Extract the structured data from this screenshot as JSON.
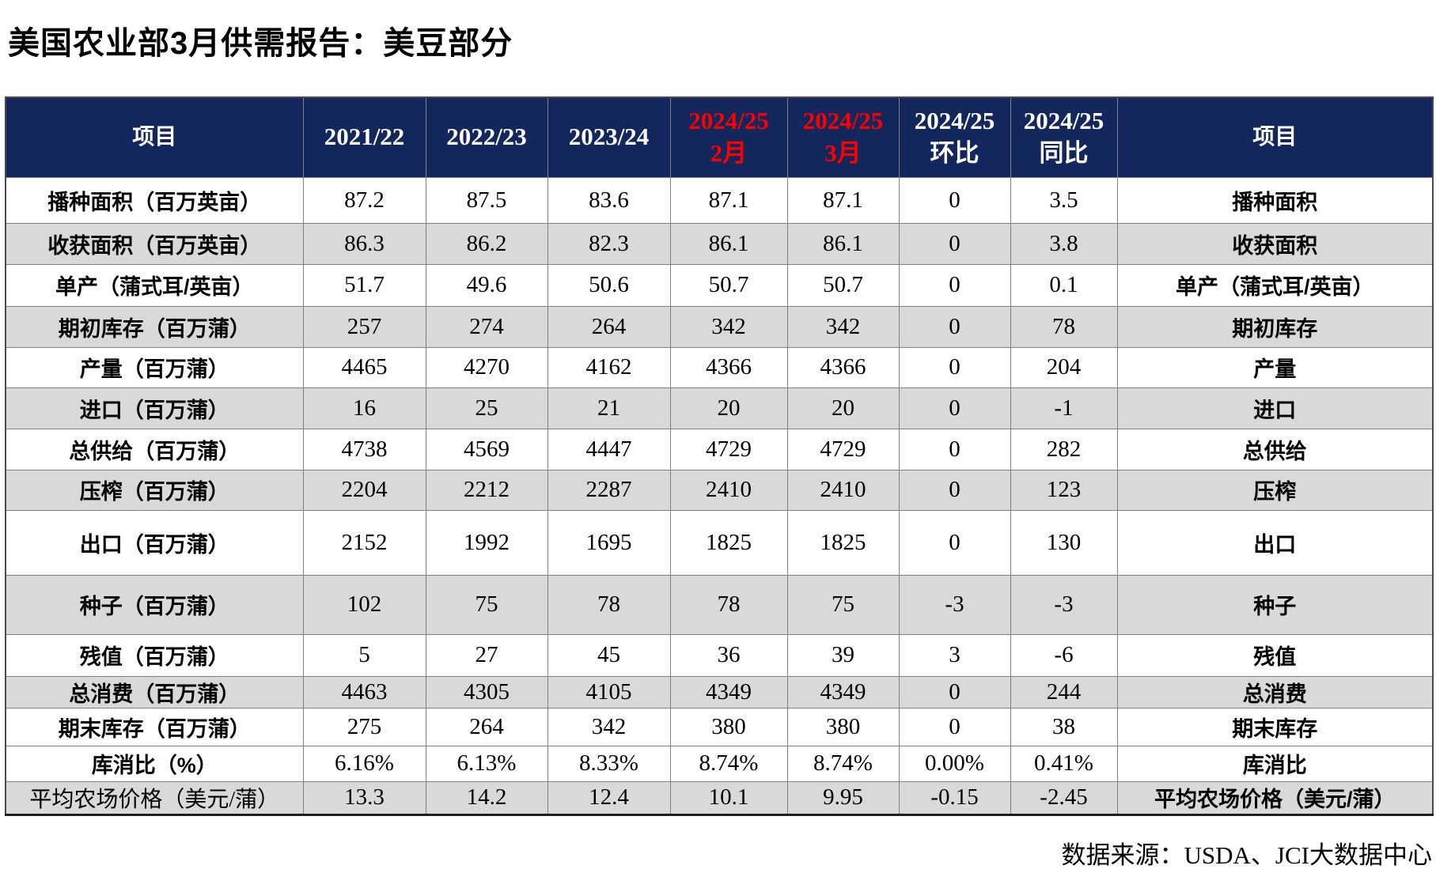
{
  "title": "美国农业部3月供需报告：美豆部分",
  "source": "数据来源：USDA、JCI大数据中心",
  "colors": {
    "header_bg": "#13275d",
    "shaded_row_bg": "#d9d9d9",
    "highlight_red": "#ff0000",
    "grid_line": "#808080"
  },
  "table": {
    "header": [
      {
        "line1": "项目",
        "line2": "",
        "red": false
      },
      {
        "line1": "2021/22",
        "line2": "",
        "red": false
      },
      {
        "line1": "2022/23",
        "line2": "",
        "red": false
      },
      {
        "line1": "2023/24",
        "line2": "",
        "red": false
      },
      {
        "line1": "2024/25",
        "line2": "2月",
        "red": true
      },
      {
        "line1": "2024/25",
        "line2": "3月",
        "red": true
      },
      {
        "line1": "2024/25",
        "line2": "环比",
        "red": false
      },
      {
        "line1": "2024/25",
        "line2": "同比",
        "red": false
      },
      {
        "line1": "项目",
        "line2": "",
        "red": false
      }
    ],
    "rows": [
      {
        "item_left": "播种面积（百万英亩）",
        "values": [
          "87.2",
          "87.5",
          "83.6",
          "87.1",
          "87.1",
          "0",
          "3.5"
        ],
        "item_right": "播种面积",
        "shaded": false
      },
      {
        "item_left": "收获面积（百万英亩）",
        "values": [
          "86.3",
          "86.2",
          "82.3",
          "86.1",
          "86.1",
          "0",
          "3.8"
        ],
        "item_right": "收获面积",
        "shaded": true
      },
      {
        "item_left": "单产（蒲式耳/英亩）",
        "values": [
          "51.7",
          "49.6",
          "50.6",
          "50.7",
          "50.7",
          "0",
          "0.1"
        ],
        "item_right": "单产（蒲式耳/英亩）",
        "shaded": false
      },
      {
        "item_left": "期初库存（百万蒲）",
        "values": [
          "257",
          "274",
          "264",
          "342",
          "342",
          "0",
          "78"
        ],
        "item_right": "期初库存",
        "shaded": true
      },
      {
        "item_left": "产量（百万蒲）",
        "values": [
          "4465",
          "4270",
          "4162",
          "4366",
          "4366",
          "0",
          "204"
        ],
        "item_right": "产量",
        "shaded": false
      },
      {
        "item_left": "进口（百万蒲）",
        "values": [
          "16",
          "25",
          "21",
          "20",
          "20",
          "0",
          "-1"
        ],
        "item_right": "进口",
        "shaded": true
      },
      {
        "item_left": "总供给（百万蒲）",
        "values": [
          "4738",
          "4569",
          "4447",
          "4729",
          "4729",
          "0",
          "282"
        ],
        "item_right": "总供给",
        "shaded": false
      },
      {
        "item_left": "压榨（百万蒲）",
        "values": [
          "2204",
          "2212",
          "2287",
          "2410",
          "2410",
          "0",
          "123"
        ],
        "item_right": "压榨",
        "shaded": true
      },
      {
        "item_left": "出口（百万蒲）",
        "values": [
          "2152",
          "1992",
          "1695",
          "1825",
          "1825",
          "0",
          "130"
        ],
        "item_right": "出口",
        "shaded": false
      },
      {
        "item_left": "种子（百万蒲）",
        "values": [
          "102",
          "75",
          "78",
          "78",
          "75",
          "-3",
          "-3"
        ],
        "item_right": "种子",
        "shaded": true
      },
      {
        "item_left": "残值（百万蒲）",
        "values": [
          "5",
          "27",
          "45",
          "36",
          "39",
          "3",
          "-6"
        ],
        "item_right": "残值",
        "shaded": false
      },
      {
        "item_left": "总消费（百万蒲）",
        "values": [
          "4463",
          "4305",
          "4105",
          "4349",
          "4349",
          "0",
          "244"
        ],
        "item_right": "总消费",
        "shaded": true
      },
      {
        "item_left": "期末库存（百万蒲）",
        "values": [
          "275",
          "264",
          "342",
          "380",
          "380",
          "0",
          "38"
        ],
        "item_right": "期末库存",
        "shaded": false
      },
      {
        "item_left": "库消比（%）",
        "values": [
          "6.16%",
          "6.13%",
          "8.33%",
          "8.74%",
          "8.74%",
          "0.00%",
          "0.41%"
        ],
        "item_right": "库消比",
        "shaded": false
      },
      {
        "item_left": "平均农场价格（美元/蒲）",
        "values": [
          "13.3",
          "14.2",
          "12.4",
          "10.1",
          "9.95",
          "-0.15",
          "-2.45"
        ],
        "item_right": "平均农场价格（美元/蒲）",
        "shaded": true,
        "red_values": [
          3,
          4,
          5,
          6
        ],
        "left_regular": true
      }
    ]
  }
}
